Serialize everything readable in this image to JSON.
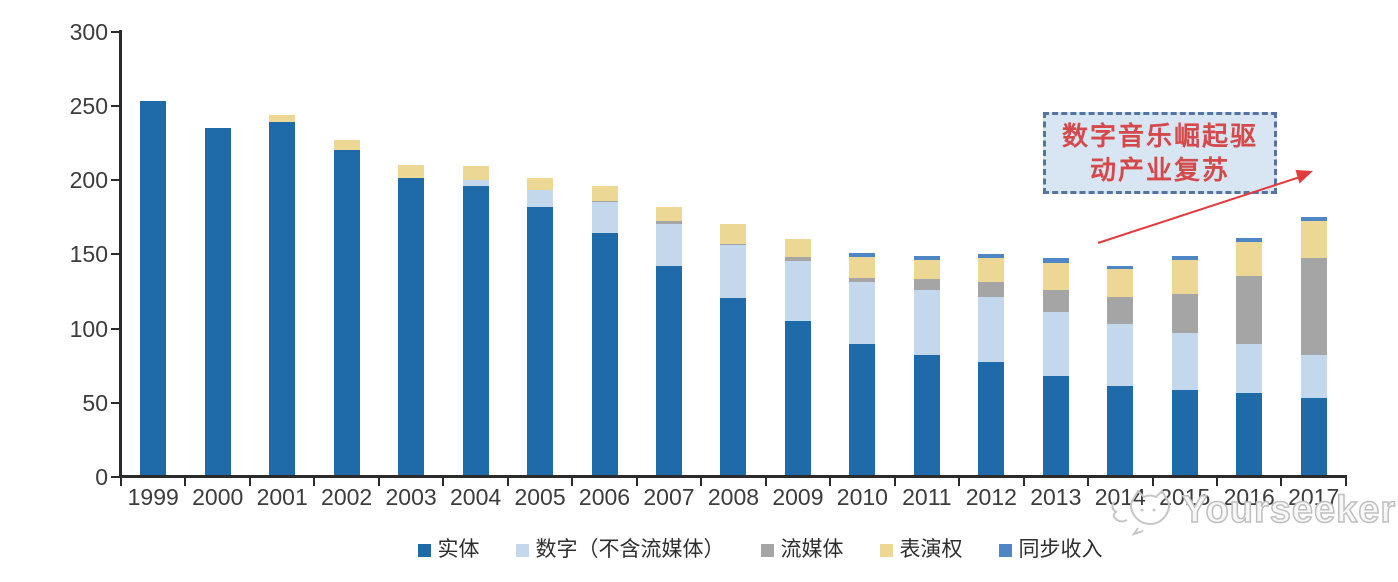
{
  "chart_data": {
    "type": "bar",
    "stacked": true,
    "title": "",
    "xlabel": "",
    "ylabel": "",
    "ylim": [
      0,
      300
    ],
    "yticks": [
      0,
      50,
      100,
      150,
      200,
      250,
      300
    ],
    "grid": false,
    "legend_position": "bottom",
    "categories": [
      "1999",
      "2000",
      "2001",
      "2002",
      "2003",
      "2004",
      "2005",
      "2006",
      "2007",
      "2008",
      "2009",
      "2010",
      "2011",
      "2012",
      "2013",
      "2014",
      "2015",
      "2016",
      "2017"
    ],
    "series": [
      {
        "name": "实体",
        "color": "#1f6ba9",
        "values": [
          252,
          234,
          238,
          219,
          200,
          195,
          181,
          163,
          141,
          119,
          104,
          88,
          81,
          76,
          67,
          60,
          57,
          55,
          52
        ]
      },
      {
        "name": "数字（不含流媒体）",
        "color": "#c3d7ed",
        "values": [
          0,
          0,
          0,
          0,
          0,
          4,
          11,
          21,
          28,
          36,
          40,
          42,
          44,
          44,
          43,
          42,
          39,
          33,
          29
        ]
      },
      {
        "name": "流媒体",
        "color": "#a5a5a5",
        "values": [
          0,
          0,
          0,
          0,
          0,
          0,
          0,
          1,
          2,
          1,
          3,
          3,
          7,
          10,
          15,
          18,
          26,
          46,
          65
        ]
      },
      {
        "name": "表演权",
        "color": "#ecd795",
        "values": [
          0,
          0,
          5,
          7,
          9,
          9,
          8,
          10,
          10,
          13,
          12,
          14,
          13,
          16,
          18,
          19,
          23,
          23,
          25
        ]
      },
      {
        "name": "同步收入",
        "color": "#4e86c6",
        "values": [
          0,
          0,
          0,
          0,
          0,
          0,
          0,
          0,
          0,
          0,
          0,
          3,
          3,
          3,
          3,
          2,
          3,
          3,
          3
        ]
      }
    ]
  },
  "annotation": {
    "line1": "数字音乐崛起驱",
    "line2": "动产业复苏",
    "text_color": "#d6494b",
    "box_fill": "#d8e6f4",
    "border_color": "#56749d",
    "arrow_color": "#e23b3f"
  },
  "watermark": {
    "text": "Yourseeker",
    "icon": "cat-chat-logo-icon",
    "color": "#bfbfbf"
  },
  "axis": {
    "line_color": "#2b2b2b",
    "label_color": "#3c3c3c"
  }
}
